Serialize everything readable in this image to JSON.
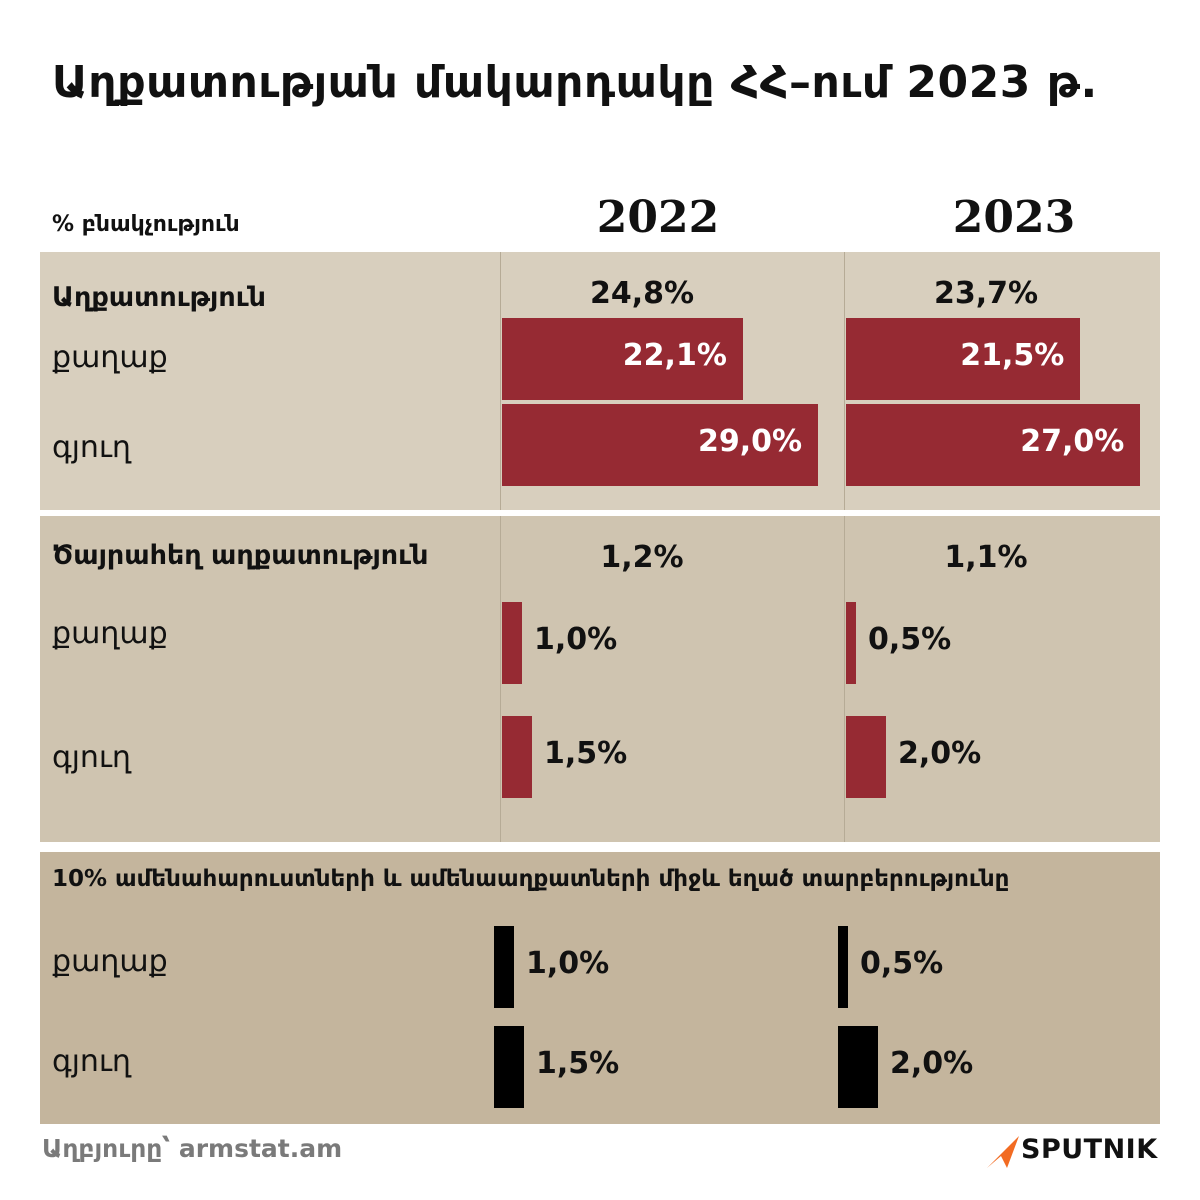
{
  "title": "Աղքատության մակարդակը ՀՀ–ում 2023 թ.",
  "subtitle": "% բնակչություն",
  "years": [
    "2022",
    "2023"
  ],
  "source": "Աղբյուրը՝ armstat.am",
  "logo": {
    "text": "SPUTNIK",
    "icon": "sputnik-arrow-icon"
  },
  "colors": {
    "bar_red": "#962a33",
    "bar_black": "#000000",
    "panel1": "#d8cfbe",
    "panel2": "#cfc4b0",
    "panel3": "#c4b59d"
  },
  "chart_data": [
    {
      "type": "bar",
      "title": "Աղքատություն",
      "totals": [
        "24,8%",
        "23,7%"
      ],
      "categories": [
        "քաղաք",
        "գյուղ"
      ],
      "series": [
        {
          "name": "2022",
          "values": [
            22.1,
            29.0
          ],
          "labels": [
            "22,1%",
            "29,0%"
          ]
        },
        {
          "name": "2023",
          "values": [
            21.5,
            27.0
          ],
          "labels": [
            "21,5%",
            "27,0%"
          ]
        }
      ]
    },
    {
      "type": "bar",
      "title": "Ծայրահեղ աղքատություն",
      "totals": [
        "1,2%",
        "1,1%"
      ],
      "categories": [
        "քաղաք",
        "գյուղ"
      ],
      "series": [
        {
          "name": "2022",
          "values": [
            1.0,
            1.5
          ],
          "labels": [
            "1,0%",
            "1,5%"
          ]
        },
        {
          "name": "2023",
          "values": [
            0.5,
            2.0
          ],
          "labels": [
            "0,5%",
            "2,0%"
          ]
        }
      ]
    },
    {
      "type": "bar",
      "title": "10% ամենահարուստների և ամենաաղքատների միջև եղած տարբերությունը",
      "categories": [
        "քաղաք",
        "գյուղ"
      ],
      "series": [
        {
          "name": "2022",
          "values": [
            1.0,
            1.5
          ],
          "labels": [
            "1,0%",
            "1,5%"
          ]
        },
        {
          "name": "2023",
          "values": [
            0.5,
            2.0
          ],
          "labels": [
            "0,5%",
            "2,0%"
          ]
        }
      ]
    }
  ]
}
